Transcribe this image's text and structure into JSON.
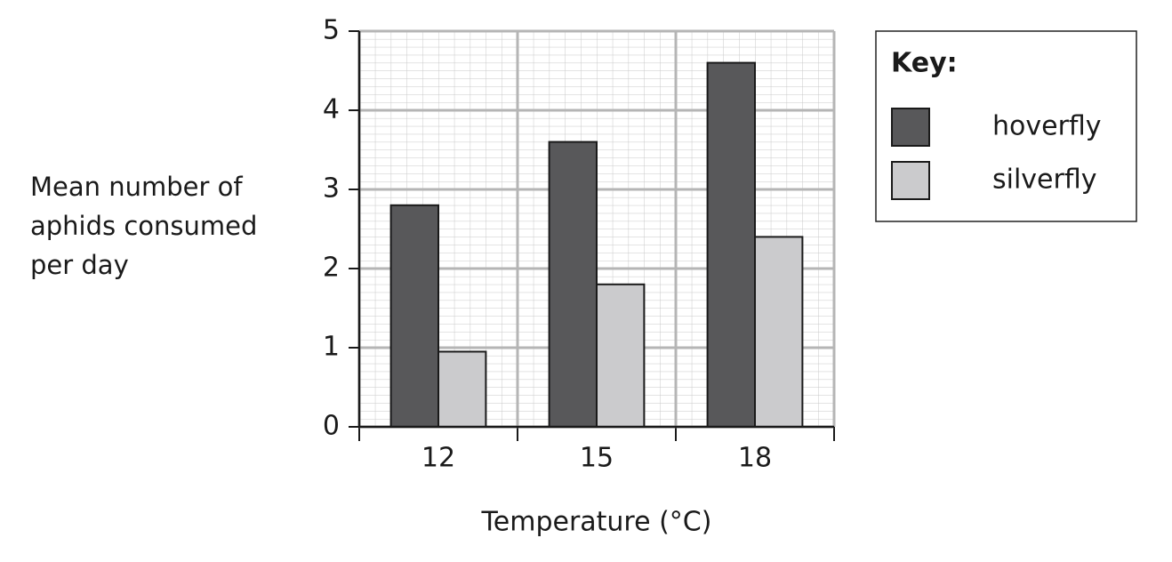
{
  "chart_data": {
    "type": "bar",
    "xlabel": "Temperature (°C)",
    "ylabel": "Mean number of aphids consumed per day",
    "categories": [
      "12",
      "15",
      "18"
    ],
    "series": [
      {
        "name": "hoverfly",
        "color": "#58585a",
        "values": [
          2.8,
          3.6,
          4.6
        ]
      },
      {
        "name": "silverfly",
        "color": "#cbcbcd",
        "values": [
          0.95,
          1.8,
          2.4
        ]
      }
    ],
    "ylim": [
      0,
      5
    ],
    "yticks": [
      0,
      1,
      2,
      3,
      4,
      5
    ],
    "grid": true,
    "legend_title": "Key:",
    "legend_position": "right"
  }
}
